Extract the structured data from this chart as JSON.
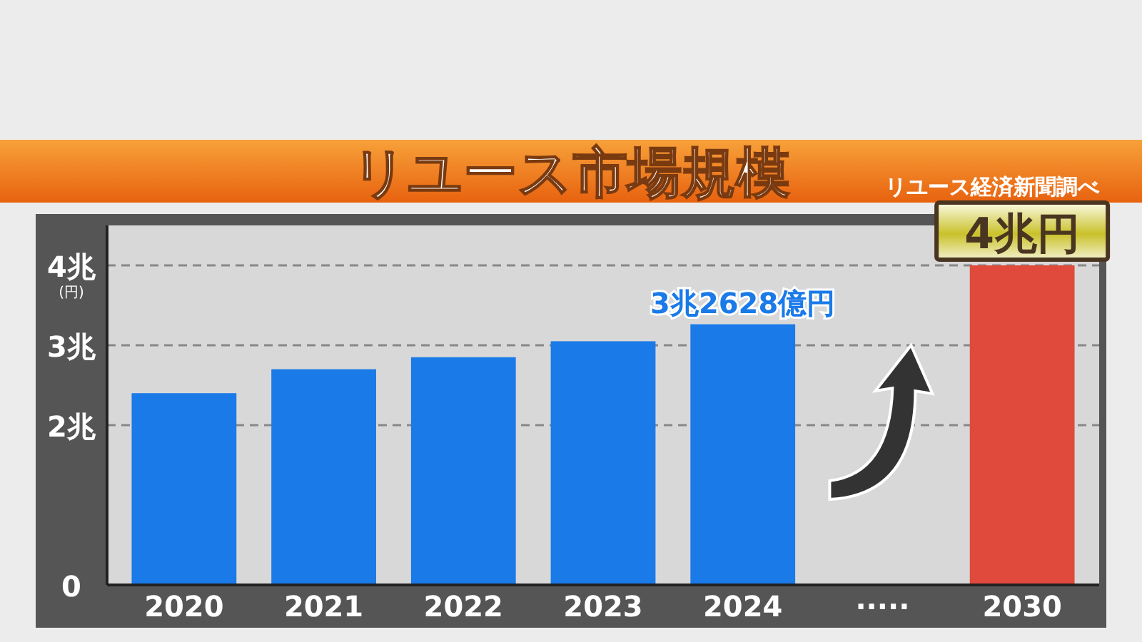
{
  "chart_data": {
    "type": "bar",
    "title": "リユース市場規模",
    "ylabel": "(円)",
    "annotations": [
      "リユース経済新聞調べ"
    ],
    "categories": [
      "2020",
      "2021",
      "2022",
      "2023",
      "2024",
      "·····",
      "2030"
    ],
    "values": [
      2.4,
      2.7,
      2.85,
      3.05,
      3.2628,
      null,
      4
    ],
    "colors": [
      "#1a7ae8",
      "#1a7ae8",
      "#1a7ae8",
      "#1a7ae8",
      "#1a7ae8",
      null,
      "#e04a3c"
    ],
    "value_labels": [
      null,
      null,
      null,
      null,
      "3兆2628億円",
      null,
      "4兆円"
    ],
    "ylim": [
      0,
      4.5
    ],
    "yticks": [
      0,
      {
        "value": 2,
        "label": "2兆"
      },
      {
        "value": 3,
        "label": "3兆"
      },
      {
        "value": 4,
        "label": "4兆"
      }
    ],
    "grid": "y"
  }
}
